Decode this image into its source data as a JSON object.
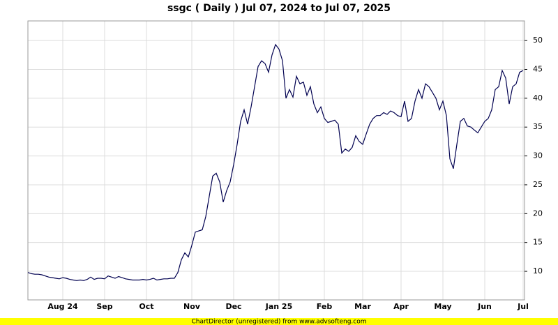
{
  "chart_data": {
    "type": "line",
    "title": "ssgc ( Daily ) Jul 07, 2024 to Jul 07, 2025",
    "footer": "ChartDirector (unregistered) from www.advsofteng.com",
    "categories": [
      null,
      null,
      null,
      null,
      null,
      null,
      null,
      null,
      null,
      null,
      "Aug 24",
      null,
      null,
      null,
      null,
      null,
      null,
      null,
      null,
      null,
      null,
      null,
      "Sep",
      null,
      null,
      null,
      null,
      null,
      null,
      null,
      null,
      null,
      null,
      null,
      "Oct",
      null,
      null,
      null,
      null,
      null,
      null,
      null,
      null,
      null,
      null,
      null,
      null,
      "Nov",
      null,
      null,
      null,
      null,
      null,
      null,
      null,
      null,
      null,
      null,
      null,
      "Dec",
      null,
      null,
      null,
      null,
      null,
      null,
      null,
      null,
      null,
      null,
      null,
      null,
      "Jan 25",
      null,
      null,
      null,
      null,
      null,
      null,
      null,
      null,
      null,
      null,
      null,
      null,
      "Feb",
      null,
      null,
      null,
      null,
      null,
      null,
      null,
      null,
      null,
      null,
      "Mar",
      null,
      null,
      null,
      null,
      null,
      null,
      null,
      null,
      null,
      null,
      "Apr",
      null,
      null,
      null,
      null,
      null,
      null,
      null,
      null,
      null,
      null,
      null,
      "May",
      null,
      null,
      null,
      null,
      null,
      null,
      null,
      null,
      null,
      null,
      null,
      "Jun",
      null,
      null,
      null,
      null,
      null,
      null,
      null,
      null,
      null,
      null,
      "Jul"
    ],
    "series": [
      {
        "color": "#000050",
        "values": [
          9.8,
          9.6,
          9.5,
          9.5,
          9.4,
          9.2,
          9.0,
          8.9,
          8.8,
          8.7,
          8.9,
          8.8,
          8.6,
          8.5,
          8.4,
          8.5,
          8.4,
          8.6,
          9.0,
          8.6,
          8.8,
          8.8,
          8.7,
          9.2,
          9.0,
          8.8,
          9.1,
          8.9,
          8.7,
          8.6,
          8.5,
          8.5,
          8.5,
          8.6,
          8.5,
          8.6,
          8.8,
          8.5,
          8.6,
          8.7,
          8.7,
          8.8,
          8.8,
          9.8,
          12.0,
          13.2,
          12.5,
          14.5,
          16.8,
          17.0,
          17.2,
          19.5,
          23.0,
          26.5,
          27.0,
          25.5,
          22.0,
          24.0,
          25.5,
          28.5,
          32.0,
          36.0,
          38.0,
          35.5,
          38.5,
          42.0,
          45.5,
          46.5,
          46.0,
          44.5,
          47.5,
          49.3,
          48.5,
          46.5,
          40.0,
          41.5,
          40.2,
          43.8,
          42.5,
          42.8,
          40.5,
          42.0,
          39.0,
          37.5,
          38.5,
          36.5,
          35.8,
          36.0,
          36.2,
          35.5,
          30.5,
          31.2,
          30.8,
          31.5,
          33.5,
          32.5,
          32.0,
          33.8,
          35.5,
          36.5,
          37.0,
          37.0,
          37.5,
          37.2,
          37.8,
          37.5,
          37.0,
          36.8,
          39.5,
          36.0,
          36.5,
          39.5,
          41.5,
          40.0,
          42.5,
          42.0,
          41.0,
          40.0,
          38.0,
          39.5,
          37.0,
          29.5,
          27.8,
          32.0,
          36.0,
          36.5,
          35.2,
          35.0,
          34.5,
          34.0,
          35.0,
          36.0,
          36.5,
          38.0,
          41.5,
          42.0,
          44.8,
          43.5,
          39.0,
          42.0,
          42.5,
          44.5,
          44.8
        ]
      }
    ],
    "ylim": [
      5.05,
      53.4
    ],
    "yticks": [
      10,
      15,
      20,
      25,
      30,
      35,
      40,
      45,
      50
    ],
    "grid": true
  }
}
